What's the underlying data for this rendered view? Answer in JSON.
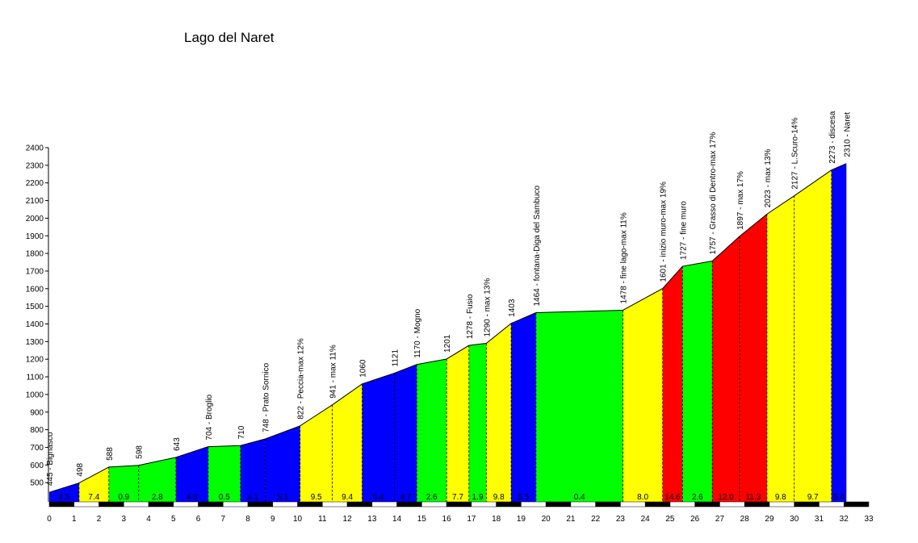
{
  "chart_data": {
    "type": "area",
    "title": "Lago del Naret",
    "xlabel": "",
    "ylabel": "",
    "xlim": [
      0,
      33
    ],
    "ylim": [
      400,
      2400
    ],
    "x_ticks": [
      0,
      1,
      2,
      3,
      4,
      5,
      6,
      7,
      8,
      9,
      10,
      11,
      12,
      13,
      14,
      15,
      16,
      17,
      18,
      19,
      20,
      21,
      22,
      23,
      24,
      25,
      26,
      27,
      28,
      29,
      30,
      31,
      32,
      33
    ],
    "y_ticks": [
      500,
      600,
      700,
      800,
      900,
      1000,
      1100,
      1200,
      1300,
      1400,
      1500,
      1600,
      1700,
      1800,
      1900,
      2000,
      2100,
      2200,
      2300,
      2400
    ],
    "grid": false,
    "points": [
      {
        "x": 0.0,
        "y": 445,
        "label": "445 - Bignasco"
      },
      {
        "x": 1.2,
        "y": 498,
        "label": "498"
      },
      {
        "x": 2.4,
        "y": 588,
        "label": "588"
      },
      {
        "x": 3.6,
        "y": 598,
        "label": "598"
      },
      {
        "x": 5.1,
        "y": 643,
        "label": "643"
      },
      {
        "x": 6.4,
        "y": 704,
        "label": "704 - Broglio"
      },
      {
        "x": 7.7,
        "y": 710,
        "label": "710"
      },
      {
        "x": 8.7,
        "y": 748,
        "label": "748 - Prato Sornico"
      },
      {
        "x": 10.1,
        "y": 822,
        "label": "822 - Peccia-max 12%"
      },
      {
        "x": 11.4,
        "y": 941,
        "label": "941 - max 11%"
      },
      {
        "x": 12.6,
        "y": 1060,
        "label": "1060"
      },
      {
        "x": 13.9,
        "y": 1121,
        "label": "1121"
      },
      {
        "x": 14.8,
        "y": 1170,
        "label": "1170 - Mogno"
      },
      {
        "x": 16.0,
        "y": 1201,
        "label": "1201"
      },
      {
        "x": 16.9,
        "y": 1278,
        "label": "1278 - Fusio"
      },
      {
        "x": 17.6,
        "y": 1290,
        "label": "1290 - max 13%"
      },
      {
        "x": 18.6,
        "y": 1403,
        "label": "1403"
      },
      {
        "x": 19.6,
        "y": 1464,
        "label": "1464 - fontana-Diga del Sambuco"
      },
      {
        "x": 23.1,
        "y": 1478,
        "label": "1478 - fine lago-max 11%"
      },
      {
        "x": 24.7,
        "y": 1601,
        "label": "1601 - inizio muro-max 19%"
      },
      {
        "x": 25.5,
        "y": 1727,
        "label": "1727 - fine muro"
      },
      {
        "x": 26.7,
        "y": 1757,
        "label": "1757 - Grasso di Dentro-max 17%"
      },
      {
        "x": 27.8,
        "y": 1897,
        "label": "1897 - max 17%"
      },
      {
        "x": 28.9,
        "y": 2023,
        "label": "2023 - max 13%"
      },
      {
        "x": 30.0,
        "y": 2127,
        "label": "2127 - L.Scuro-14%"
      },
      {
        "x": 31.5,
        "y": 2273,
        "label": "2273 - discesa"
      },
      {
        "x": 32.1,
        "y": 2310,
        "label": "2310 - Naret"
      }
    ],
    "segments": [
      {
        "from": 0.0,
        "to": 1.2,
        "grade": "4.5",
        "color": "#0000ff"
      },
      {
        "from": 1.2,
        "to": 2.4,
        "grade": "7.4",
        "color": "#ffff00"
      },
      {
        "from": 2.4,
        "to": 3.6,
        "grade": "0.9",
        "color": "#00ff00"
      },
      {
        "from": 3.6,
        "to": 5.1,
        "grade": "2.8",
        "color": "#00ff00"
      },
      {
        "from": 5.1,
        "to": 6.4,
        "grade": "4.8",
        "color": "#0000ff"
      },
      {
        "from": 6.4,
        "to": 7.7,
        "grade": "0.5",
        "color": "#00ff00"
      },
      {
        "from": 7.7,
        "to": 8.7,
        "grade": "4.1",
        "color": "#0000ff"
      },
      {
        "from": 8.7,
        "to": 10.1,
        "grade": "5.1",
        "color": "#0000ff"
      },
      {
        "from": 10.1,
        "to": 11.4,
        "grade": "9.5",
        "color": "#ffff00"
      },
      {
        "from": 11.4,
        "to": 12.6,
        "grade": "9.4",
        "color": "#ffff00"
      },
      {
        "from": 12.6,
        "to": 13.9,
        "grade": "5.4",
        "color": "#0000ff"
      },
      {
        "from": 13.9,
        "to": 14.8,
        "grade": "4.7",
        "color": "#0000ff"
      },
      {
        "from": 14.8,
        "to": 16.0,
        "grade": "2.6",
        "color": "#00ff00"
      },
      {
        "from": 16.0,
        "to": 16.9,
        "grade": "7.7",
        "color": "#ffff00"
      },
      {
        "from": 16.9,
        "to": 17.6,
        "grade": "1.9",
        "color": "#00ff00"
      },
      {
        "from": 17.6,
        "to": 18.6,
        "grade": "9.8",
        "color": "#ffff00"
      },
      {
        "from": 18.6,
        "to": 19.6,
        "grade": "5.5",
        "color": "#0000ff"
      },
      {
        "from": 19.6,
        "to": 23.1,
        "grade": "0.4",
        "color": "#00ff00"
      },
      {
        "from": 23.1,
        "to": 24.7,
        "grade": "8.0",
        "color": "#ffff00"
      },
      {
        "from": 24.7,
        "to": 25.5,
        "grade": "14.6",
        "color": "#ff0000"
      },
      {
        "from": 25.5,
        "to": 26.7,
        "grade": "2.6",
        "color": "#00ff00"
      },
      {
        "from": 26.7,
        "to": 27.8,
        "grade": "12.0",
        "color": "#ff0000"
      },
      {
        "from": 27.8,
        "to": 28.9,
        "grade": "11.3",
        "color": "#ff0000"
      },
      {
        "from": 28.9,
        "to": 30.0,
        "grade": "9.8",
        "color": "#ffff00"
      },
      {
        "from": 30.0,
        "to": 31.5,
        "grade": "9.7",
        "color": "#ffff00"
      },
      {
        "from": 31.5,
        "to": 32.1,
        "grade": "5.4",
        "color": "#0000ff"
      }
    ]
  }
}
